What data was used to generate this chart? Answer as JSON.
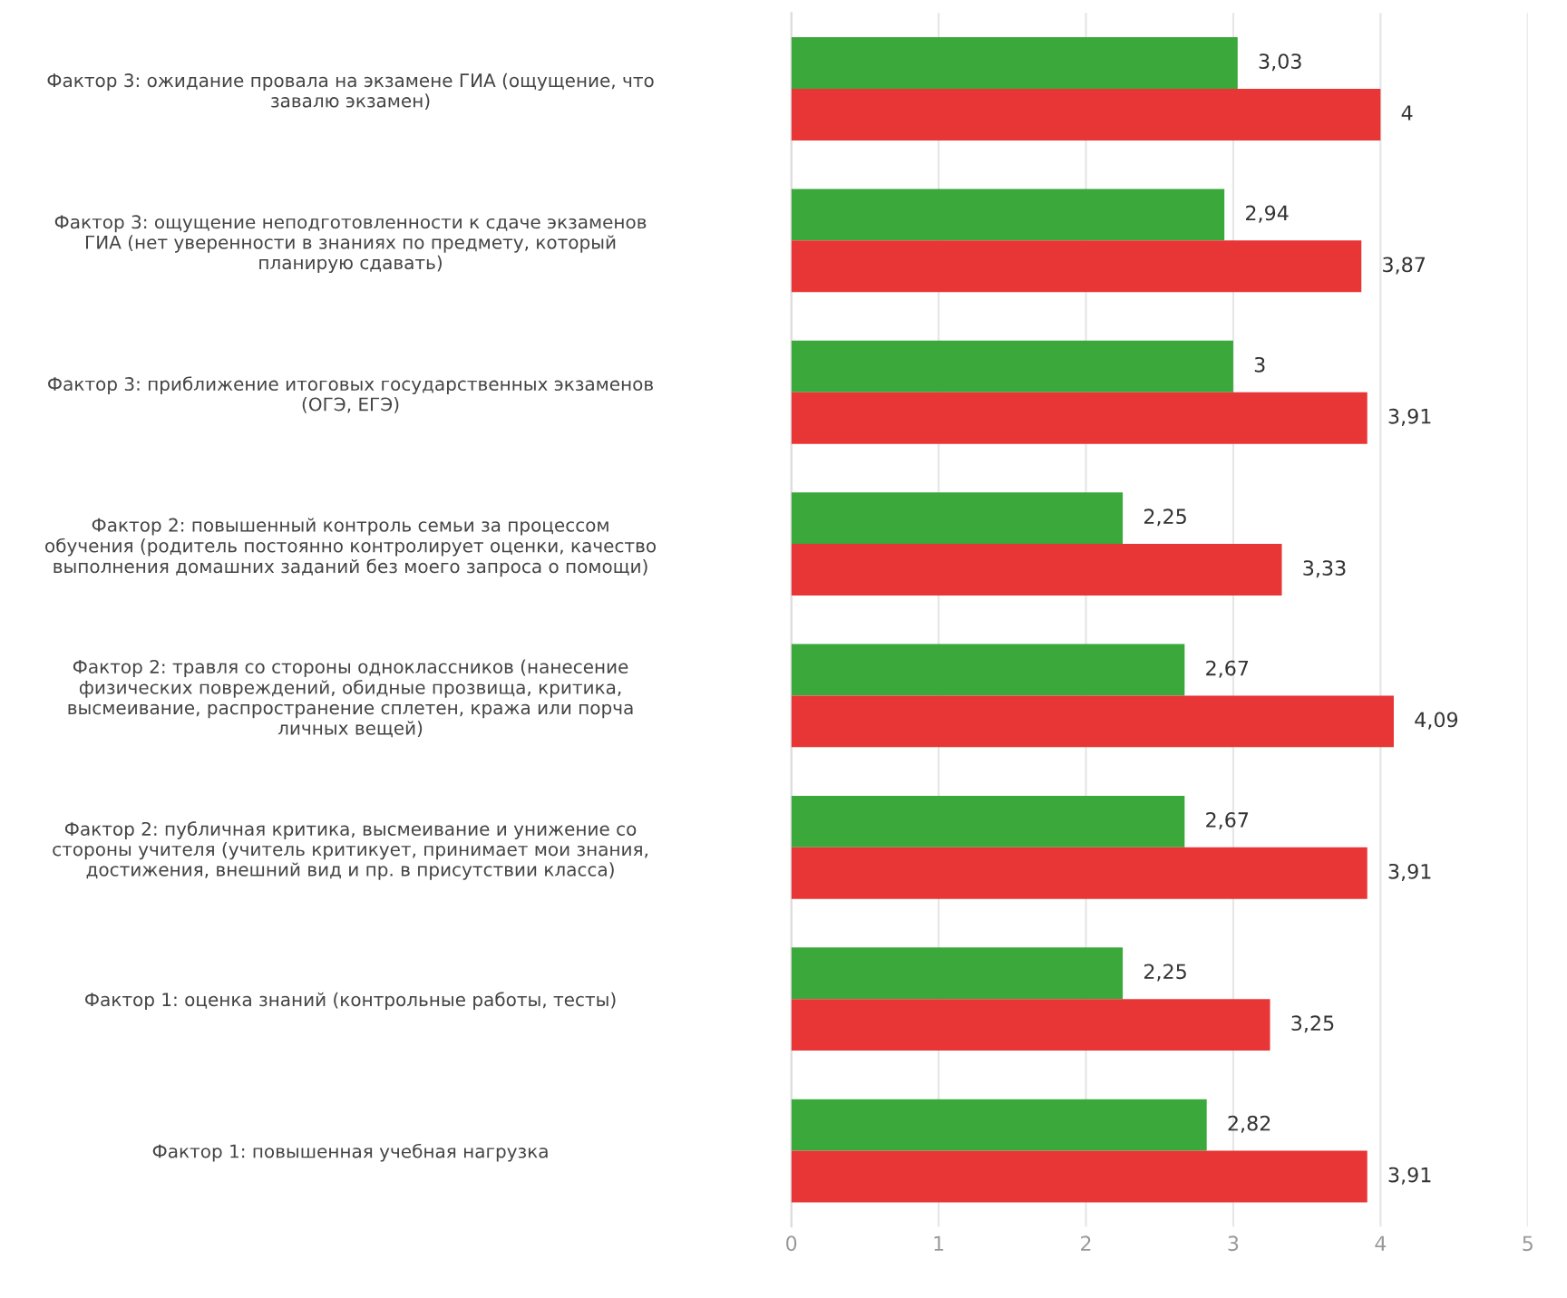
{
  "chart_data": {
    "type": "bar",
    "orientation": "horizontal",
    "categories": [
      "Фактор 3: ожидание провала на экзамене ГИА (ощущение, что\nзавалю экзамен)",
      "Фактор 3: ощущение неподготовленности к сдаче экзаменов\nГИА (нет уверенности в знаниях по предмету, который\nпланирую сдавать)",
      "Фактор 3: приближение итоговых государственных экзаменов\n(ОГЭ, ЕГЭ)",
      "Фактор 2: повышенный контроль семьи за процессом\nобучения (родитель постоянно контролирует оценки, качество\nвыполнения домашних заданий без моего запроса о помощи)",
      "Фактор 2: травля со стороны одноклассников (нанесение\nфизических повреждений, обидные прозвища, критика,\nвысмеивание, распространение сплетен, кража или порча\nличных вещей)",
      "Фактор 2: публичная критика, высмеивание и унижение со\nстороны учителя (учитель критикует, принимает мои знания,\nдостижения, внешний вид и пр. в присутствии класса)",
      "Фактор 1: оценка знаний (контрольные работы, тесты)",
      "Фактор 1: повышенная учебная нагрузка"
    ],
    "series": [
      {
        "color": "#3aa83a",
        "values": [
          3.03,
          2.94,
          3,
          2.25,
          2.67,
          2.67,
          2.25,
          2.82
        ],
        "value_labels": [
          "3,03",
          "2,94",
          "3",
          "2,25",
          "2,67",
          "2,67",
          "2,25",
          "2,82"
        ]
      },
      {
        "color": "#e83535",
        "values": [
          4,
          3.87,
          3.91,
          3.33,
          4.09,
          3.91,
          3.25,
          3.91
        ],
        "value_labels": [
          "4",
          "3,87",
          "3,91",
          "3,33",
          "4,09",
          "3,91",
          "3,25",
          "3,91"
        ]
      }
    ],
    "xlim": [
      0,
      5
    ],
    "xticks": [
      0,
      1,
      2,
      3,
      4,
      5
    ],
    "grid": "x"
  }
}
